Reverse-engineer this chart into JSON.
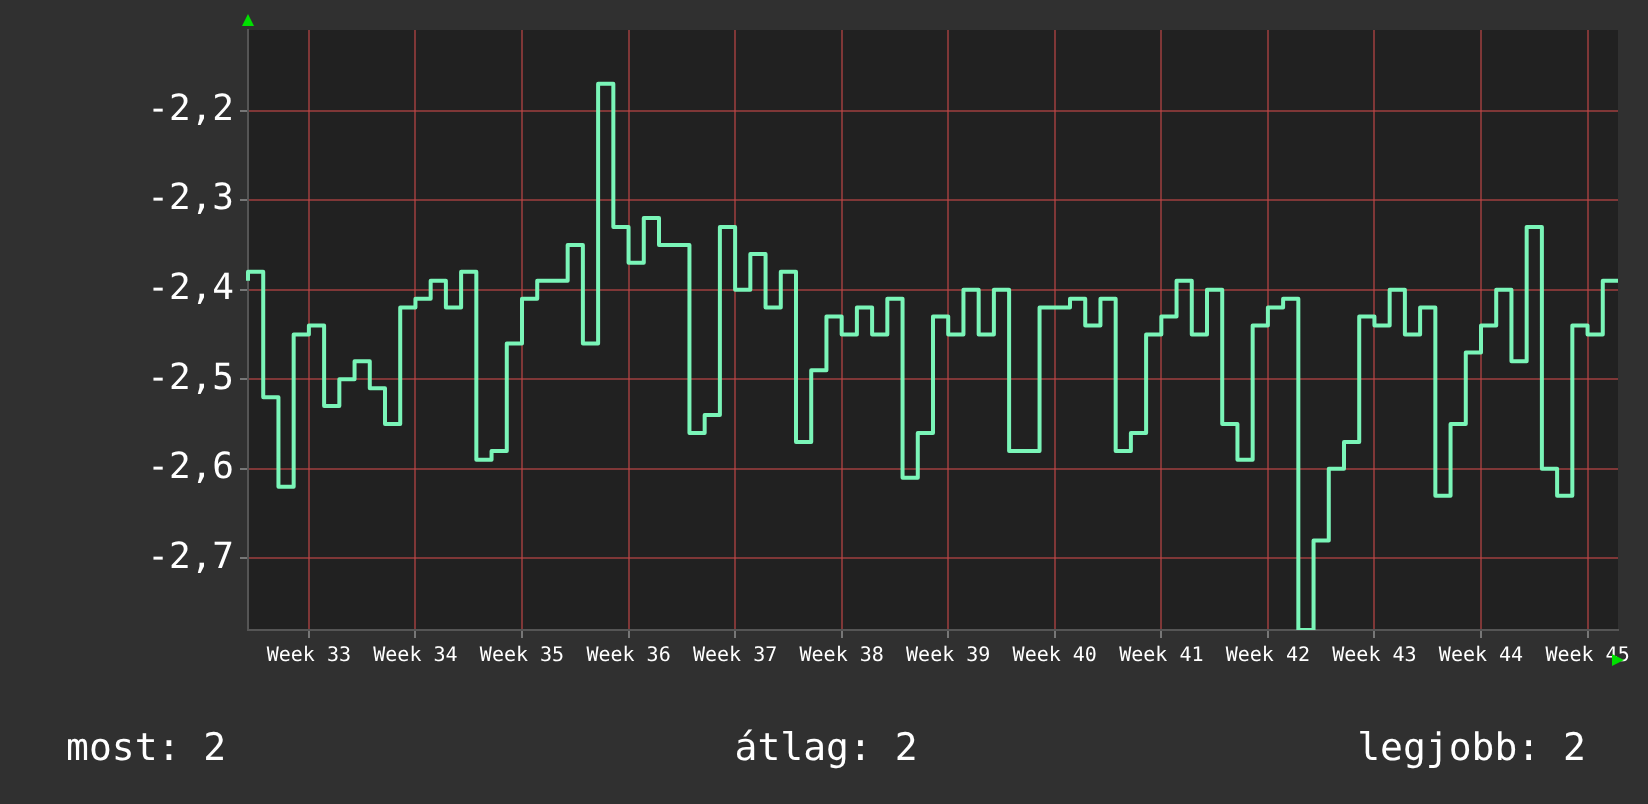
{
  "chart_data": {
    "type": "step",
    "categories": [
      null,
      null,
      null,
      null,
      "Week 33",
      null,
      null,
      null,
      null,
      null,
      null,
      "Week 34",
      null,
      null,
      null,
      null,
      null,
      null,
      "Week 35",
      null,
      null,
      null,
      null,
      null,
      null,
      "Week 36",
      null,
      null,
      null,
      null,
      null,
      null,
      "Week 37",
      null,
      null,
      null,
      null,
      null,
      null,
      "Week 38",
      null,
      null,
      null,
      null,
      null,
      null,
      "Week 39",
      null,
      null,
      null,
      null,
      null,
      null,
      "Week 40",
      null,
      null,
      null,
      null,
      null,
      null,
      "Week 41",
      null,
      null,
      null,
      null,
      null,
      null,
      "Week 42",
      null,
      null,
      null,
      null,
      null,
      null,
      "Week 43",
      null,
      null,
      null,
      null,
      null,
      null,
      "Week 44",
      null,
      null,
      null,
      null,
      null,
      null,
      "Week 45",
      null,
      null
    ],
    "series": [
      {
        "color": "#7af5b8",
        "values": [
          -2.39,
          -2.38,
          -2.52,
          -2.62,
          -2.45,
          -2.44,
          -2.53,
          -2.5,
          -2.48,
          -2.51,
          -2.55,
          -2.42,
          -2.41,
          -2.39,
          -2.42,
          -2.38,
          -2.59,
          -2.58,
          -2.46,
          -2.41,
          -2.39,
          -2.39,
          -2.35,
          -2.46,
          -2.17,
          -2.33,
          -2.37,
          -2.32,
          -2.35,
          -2.35,
          -2.56,
          -2.54,
          -2.33,
          -2.4,
          -2.36,
          -2.42,
          -2.38,
          -2.57,
          -2.49,
          -2.43,
          -2.45,
          -2.42,
          -2.45,
          -2.41,
          -2.61,
          -2.56,
          -2.43,
          -2.45,
          -2.4,
          -2.45,
          -2.4,
          -2.58,
          -2.58,
          -2.42,
          -2.42,
          -2.41,
          -2.44,
          -2.41,
          -2.58,
          -2.56,
          -2.45,
          -2.43,
          -2.39,
          -2.45,
          -2.4,
          -2.55,
          -2.59,
          -2.44,
          -2.42,
          -2.41,
          -2.78,
          -2.68,
          -2.6,
          -2.57,
          -2.43,
          -2.44,
          -2.4,
          -2.45,
          -2.42,
          -2.63,
          -2.55,
          -2.47,
          -2.44,
          -2.4,
          -2.48,
          -2.33,
          -2.6,
          -2.63,
          -2.44,
          -2.45,
          -2.39
        ]
      }
    ],
    "ylim": [
      -2.78,
      -2.11
    ],
    "yticks": [
      {
        "value": -2.7,
        "label": "-2,7"
      },
      {
        "value": -2.6,
        "label": "-2,6"
      },
      {
        "value": -2.5,
        "label": "-2,5"
      },
      {
        "value": -2.4,
        "label": "-2,4"
      },
      {
        "value": -2.3,
        "label": "-2,3"
      },
      {
        "value": -2.2,
        "label": "-2,2"
      }
    ],
    "grid": true,
    "legend": false,
    "marker": "none",
    "annotations": [
      "most: 2",
      "átlag: 2",
      "legjobb: 2"
    ]
  }
}
